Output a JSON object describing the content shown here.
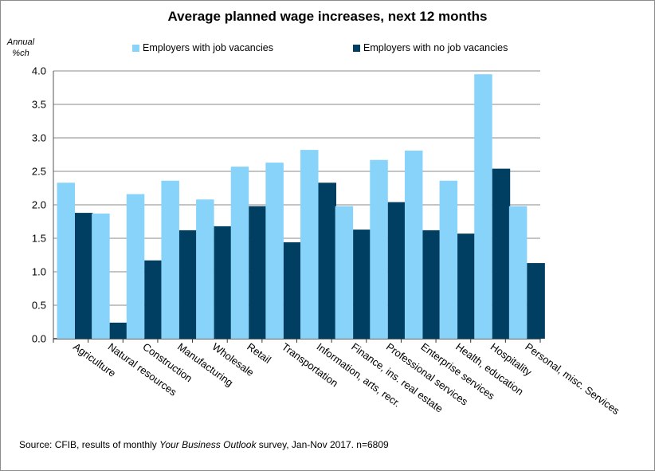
{
  "chart_data": {
    "type": "bar",
    "title": "Average planned wage increases, next 12 months",
    "ylabel_line1": "Annual",
    "ylabel_line2": "%ch",
    "xlabel": "",
    "ylim": [
      0,
      4.0
    ],
    "yticks": [
      "0.0",
      "0.5",
      "1.0",
      "1.5",
      "2.0",
      "2.5",
      "3.0",
      "3.5",
      "4.0"
    ],
    "grid": "horizontal",
    "legend_position": "top",
    "categories": [
      "Agriculture",
      "Natural resources",
      "Construction",
      "Manufacturing",
      "Wholesale",
      "Retail",
      "Transportation",
      "Information, arts, recr.",
      "Finance, ins. real estate",
      "Professional services",
      "Enterprise services",
      "Health, education",
      "Hospitality",
      "Personal, misc. Services"
    ],
    "series": [
      {
        "name": "Employers with job vacancies",
        "color": "#87D3FA",
        "values": [
          2.33,
          1.87,
          2.16,
          2.36,
          2.08,
          2.57,
          2.63,
          2.82,
          1.98,
          2.67,
          2.81,
          2.36,
          3.95,
          1.98
        ]
      },
      {
        "name": "Employers with no job vacancies",
        "color": "#003F62",
        "values": [
          1.88,
          0.24,
          1.17,
          1.62,
          1.68,
          1.98,
          1.44,
          2.33,
          1.63,
          2.04,
          1.62,
          1.57,
          2.54,
          1.13
        ]
      }
    ]
  },
  "source": {
    "prefix": "Source: CFIB, results of monthly ",
    "italic": "Your Business Outlook",
    "suffix": " survey, Jan-Nov 2017. n=6809"
  }
}
